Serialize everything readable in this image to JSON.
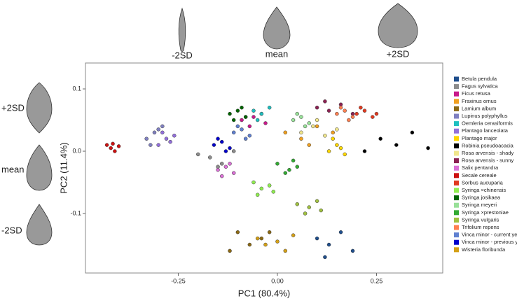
{
  "chart_data": {
    "type": "scatter",
    "xlabel": "PC1 (80.4%)",
    "ylabel": "PC2 (11.4%)",
    "shape_labels_top": [
      "-2SD",
      "mean",
      "+2SD"
    ],
    "shape_labels_left": [
      "+2SD",
      "mean",
      "-2SD"
    ],
    "xlim": [
      -0.484,
      0.417
    ],
    "ylim": [
      -0.1955,
      0.1416
    ],
    "xticks": [
      -0.25,
      {
        "value": 0,
        "label": "0.00"
      },
      0.25
    ],
    "yticks": [
      0.1,
      {
        "value": 0,
        "label": "0.0"
      },
      -0.1
    ],
    "series": [
      {
        "name": "Betula pendula",
        "color": "#1f4e8c",
        "x": [
          0.1,
          0.13,
          0.16,
          0.19,
          0.12
        ],
        "y": [
          -0.14,
          -0.15,
          -0.13,
          -0.16,
          -0.17
        ]
      },
      {
        "name": "Fagus sylvatica",
        "color": "#8c8c8c",
        "x": [
          -0.2,
          -0.17,
          -0.14,
          -0.11,
          -0.15
        ],
        "y": [
          -0.005,
          -0.01,
          -0.02,
          0.0,
          -0.025
        ]
      },
      {
        "name": "Ficus retusa",
        "color": "#c8198a",
        "x": [
          -0.09,
          -0.06,
          -0.03,
          -0.07,
          -0.04
        ],
        "y": [
          0.05,
          0.055,
          0.045,
          0.04,
          0.06
        ]
      },
      {
        "name": "Fraxinus ornus",
        "color": "#f0a020",
        "x": [
          0.02,
          0.06,
          0.1,
          0.14,
          0.08
        ],
        "y": [
          0.03,
          0.02,
          0.04,
          0.03,
          0.01
        ]
      },
      {
        "name": "Lamium album",
        "color": "#8b6914",
        "x": [
          -0.1,
          -0.07,
          -0.04,
          -0.12,
          -0.02
        ],
        "y": [
          -0.13,
          -0.15,
          -0.14,
          -0.16,
          -0.13
        ]
      },
      {
        "name": "Lupinus polyphyllus",
        "color": "#8080c0",
        "x": [
          -0.33,
          -0.31,
          -0.29,
          -0.32,
          -0.3
        ],
        "y": [
          0.02,
          0.03,
          0.04,
          0.01,
          0.035
        ]
      },
      {
        "name": "Oemleria cerasiformis",
        "color": "#20c0c0",
        "x": [
          -0.06,
          -0.04,
          -0.02,
          -0.05,
          -0.08
        ],
        "y": [
          0.065,
          0.06,
          0.07,
          0.05,
          0.055
        ]
      },
      {
        "name": "Plantago lanceolata",
        "color": "#9370db",
        "x": [
          -0.3,
          -0.28,
          -0.27,
          -0.29,
          -0.26
        ],
        "y": [
          0.01,
          0.02,
          0.015,
          0.03,
          0.025
        ]
      },
      {
        "name": "Plantago major",
        "color": "#ffd700",
        "x": [
          0.13,
          0.15,
          0.17,
          0.14,
          0.16
        ],
        "y": [
          0.0,
          0.01,
          -0.005,
          0.02,
          0.005
        ]
      },
      {
        "name": "Robinia pseudoacacia",
        "color": "#000000",
        "x": [
          0.22,
          0.26,
          0.3,
          0.34,
          0.38
        ],
        "y": [
          0.0,
          0.02,
          0.01,
          0.03,
          0.005
        ]
      },
      {
        "name": "Rosa arvensis - shady",
        "color": "#f0e68c",
        "x": [
          0.06,
          0.09,
          0.12,
          0.15,
          0.1
        ],
        "y": [
          0.03,
          0.04,
          0.025,
          0.035,
          0.05
        ]
      },
      {
        "name": "Rosa arvensis - sunny",
        "color": "#8b2252",
        "x": [
          0.1,
          0.13,
          0.16,
          0.19,
          0.12
        ],
        "y": [
          0.07,
          0.065,
          0.075,
          0.06,
          0.08
        ]
      },
      {
        "name": "Salix pentandra",
        "color": "#da70d6",
        "x": [
          -0.15,
          -0.13,
          -0.11,
          -0.12,
          -0.14
        ],
        "y": [
          -0.03,
          -0.025,
          -0.035,
          -0.02,
          -0.04
        ]
      },
      {
        "name": "Secale cereale",
        "color": "#cc1111",
        "x": [
          -0.43,
          -0.42,
          -0.41,
          -0.4,
          -0.415
        ],
        "y": [
          0.01,
          0.005,
          0.0,
          0.008,
          0.012
        ]
      },
      {
        "name": "Sorbus aucuparia",
        "color": "#e03a20",
        "x": [
          0.2,
          0.22,
          0.24,
          0.21,
          0.25
        ],
        "y": [
          0.06,
          0.065,
          0.055,
          0.07,
          0.06
        ]
      },
      {
        "name": "Syringa ×chinensis",
        "color": "#90ee50",
        "x": [
          -0.06,
          -0.04,
          -0.02,
          -0.05,
          -0.01
        ],
        "y": [
          -0.05,
          -0.06,
          -0.055,
          -0.07,
          -0.065
        ]
      },
      {
        "name": "Syringa josikaea",
        "color": "#006400",
        "x": [
          -0.12,
          -0.1,
          -0.08,
          -0.11,
          -0.09
        ],
        "y": [
          0.06,
          0.065,
          0.055,
          0.05,
          0.07
        ]
      },
      {
        "name": "Syringa meyeri",
        "color": "#98e098",
        "x": [
          0.04,
          0.06,
          0.08,
          0.05,
          0.07
        ],
        "y": [
          0.05,
          0.055,
          0.045,
          0.06,
          0.04
        ]
      },
      {
        "name": "Syringa ×prestoniae",
        "color": "#33aa33",
        "x": [
          0.0,
          0.03,
          0.05,
          0.02,
          0.04
        ],
        "y": [
          -0.02,
          -0.03,
          -0.025,
          -0.035,
          -0.015
        ]
      },
      {
        "name": "Syringa vulgaris",
        "color": "#a0c040",
        "x": [
          0.05,
          0.08,
          0.11,
          0.07,
          0.1
        ],
        "y": [
          -0.085,
          -0.09,
          -0.095,
          -0.1,
          -0.08
        ]
      },
      {
        "name": "Trifolium repens",
        "color": "#ff7f50",
        "x": [
          0.15,
          0.17,
          0.19,
          0.16,
          0.18
        ],
        "y": [
          0.06,
          0.065,
          0.055,
          0.07,
          0.05
        ]
      },
      {
        "name": "Vinca minor - current year",
        "color": "#6080d0",
        "x": [
          -0.11,
          -0.09,
          -0.07,
          -0.1,
          -0.08
        ],
        "y": [
          0.03,
          0.035,
          0.025,
          0.04,
          0.02
        ]
      },
      {
        "name": "Vinca minor - previous year",
        "color": "#0000cc",
        "x": [
          -0.16,
          -0.14,
          -0.12,
          -0.15,
          -0.13
        ],
        "y": [
          0.01,
          0.015,
          0.005,
          0.02,
          0.0
        ]
      },
      {
        "name": "Wisteria floribunda",
        "color": "#d4a017",
        "x": [
          -0.05,
          -0.03,
          0.0,
          0.02,
          0.04
        ],
        "y": [
          -0.14,
          -0.15,
          -0.145,
          -0.16,
          -0.135
        ]
      }
    ]
  }
}
